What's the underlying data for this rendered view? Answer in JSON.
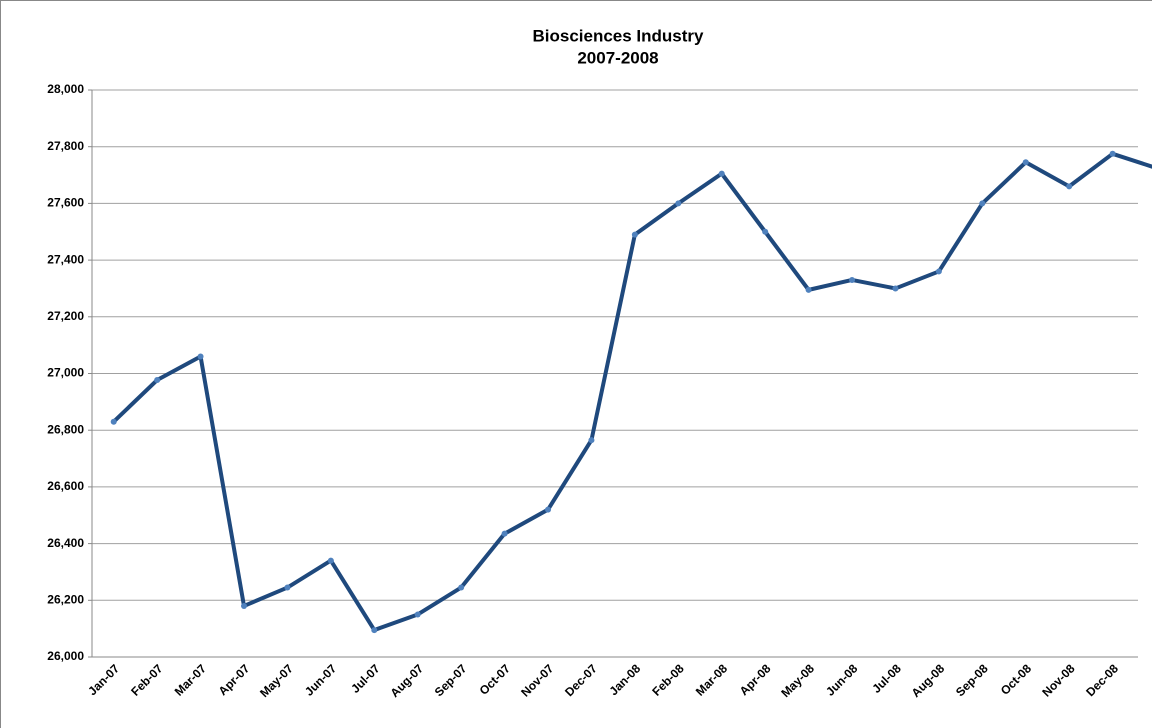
{
  "chart_data": {
    "type": "line",
    "title": "Biosciences Industry",
    "subtitle": "2007-2008",
    "categories": [
      "Jan-07",
      "Feb-07",
      "Mar-07",
      "Apr-07",
      "May-07",
      "Jun-07",
      "Jul-07",
      "Aug-07",
      "Sep-07",
      "Oct-07",
      "Nov-07",
      "Dec-07",
      "Jan-08",
      "Feb-08",
      "Mar-08",
      "Apr-08",
      "May-08",
      "Jun-08",
      "Jul-08",
      "Aug-08",
      "Sep-08",
      "Oct-08",
      "Nov-08",
      "Dec-08",
      null
    ],
    "series": [
      {
        "name": "Biosciences Industry",
        "color": "#1f497d",
        "marker_color": "#4f81bd",
        "values": [
          26830,
          26977,
          27060,
          26180,
          26245,
          26340,
          26095,
          26150,
          26245,
          26435,
          26520,
          26765,
          27490,
          27600,
          27705,
          27500,
          27295,
          27330,
          27300,
          27360,
          27600,
          27745,
          27660,
          27775,
          27725
        ]
      }
    ],
    "ylim": [
      26000,
      28000
    ],
    "yticks": [
      {
        "value": 26000,
        "label": "26,000"
      },
      {
        "value": 26200,
        "label": "26,200"
      },
      {
        "value": 26400,
        "label": "26,400"
      },
      {
        "value": 26600,
        "label": "26,600"
      },
      {
        "value": 26800,
        "label": "26,800"
      },
      {
        "value": 27000,
        "label": "27,000"
      },
      {
        "value": 27200,
        "label": "27,200"
      },
      {
        "value": 27400,
        "label": "27,400"
      },
      {
        "value": 27600,
        "label": "27,600"
      },
      {
        "value": 27800,
        "label": "27,800"
      },
      {
        "value": 28000,
        "label": "28,000"
      }
    ],
    "grid": true
  }
}
